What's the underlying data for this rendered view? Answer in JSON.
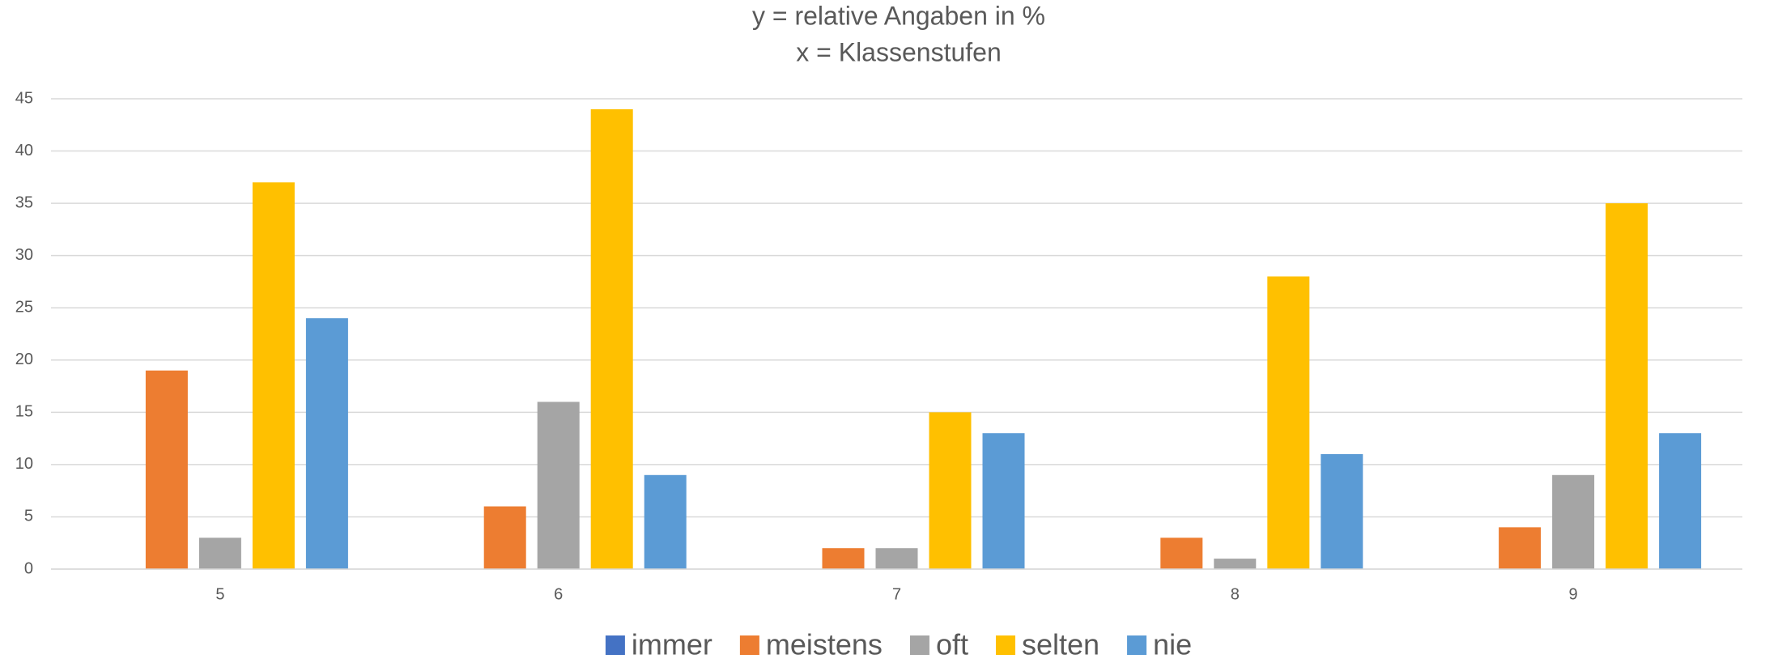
{
  "chart_data": {
    "type": "bar",
    "title": "y = relative Angaben in %",
    "subtitle": "x = Klassenstufen",
    "categories": [
      "5",
      "6",
      "7",
      "8",
      "9"
    ],
    "series": [
      {
        "name": "immer",
        "color": "#4472c4",
        "values": [
          0,
          0,
          0,
          0,
          0
        ]
      },
      {
        "name": "meistens",
        "color": "#ed7d31",
        "values": [
          19,
          6,
          2,
          3,
          4
        ]
      },
      {
        "name": "oft",
        "color": "#a5a5a5",
        "values": [
          3,
          16,
          2,
          1,
          9
        ]
      },
      {
        "name": "selten",
        "color": "#ffc000",
        "values": [
          37,
          44,
          15,
          28,
          35
        ]
      },
      {
        "name": "nie",
        "color": "#5b9bd5",
        "values": [
          24,
          9,
          13,
          11,
          13
        ]
      }
    ],
    "ylim": [
      0,
      45
    ],
    "yticks": [
      0,
      5,
      10,
      15,
      20,
      25,
      30,
      35,
      40,
      45
    ],
    "grid": true,
    "legend": "bottom"
  }
}
